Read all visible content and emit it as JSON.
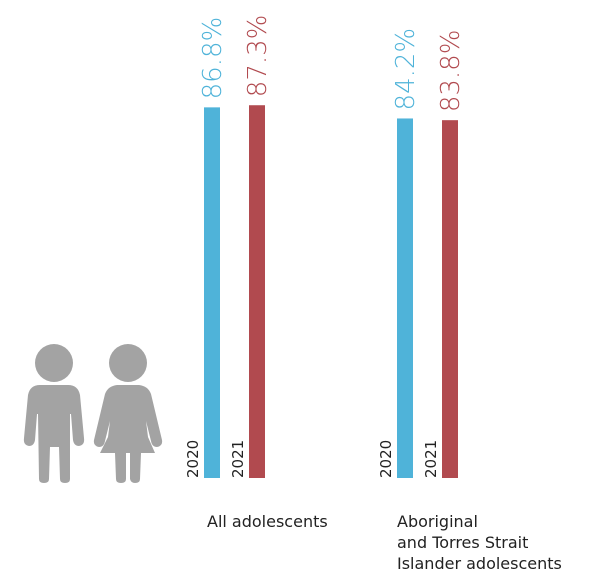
{
  "chart_data": {
    "type": "bar",
    "categories": [
      [
        "All adolescents"
      ],
      [
        "Aboriginal",
        "and Torres Strait",
        "Islander adolescents"
      ]
    ],
    "series": [
      {
        "name": "2020",
        "values": [
          86.8,
          84.2
        ],
        "color": "#4fb3d9",
        "label_color": "#4fb3d9"
      },
      {
        "name": "2021",
        "values": [
          87.3,
          83.8
        ],
        "color": "#b14a4f",
        "label_color": "#b14a4f"
      }
    ],
    "value_labels": [
      [
        "86.8%",
        "84.2%"
      ],
      [
        "87.3%",
        "83.8%"
      ]
    ],
    "year_labels": [
      "2020",
      "2021"
    ],
    "ylim": [
      0,
      100
    ],
    "grid": false,
    "legend": "none",
    "icon": "boy-and-girl-icon",
    "icon_color": "#a3a3a3"
  }
}
